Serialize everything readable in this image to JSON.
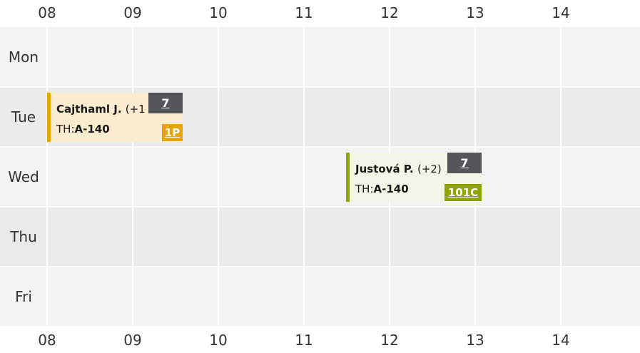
{
  "hours": [
    "08",
    "09",
    "10",
    "11",
    "12",
    "13",
    "14"
  ],
  "days": [
    "Mon",
    "Tue",
    "Wed",
    "Thu",
    "Fri"
  ],
  "events": [
    {
      "day": "Tue",
      "title": "Cajthaml J.",
      "extra": "(+1",
      "room_prefix": "TH:",
      "room": "A-140",
      "badge": "7",
      "code": "1P",
      "accent_color": "#e8a400",
      "background_color": "#fceccf",
      "code_color": "#e8a400"
    },
    {
      "day": "Wed",
      "title": "Justová P.",
      "extra": "(+2)",
      "room_prefix": "TH:",
      "room": "A-140",
      "badge": "7",
      "code": "101C",
      "accent_color": "#8ea500",
      "background_color": "#f4f5e6",
      "code_color": "#8ea500"
    }
  ]
}
